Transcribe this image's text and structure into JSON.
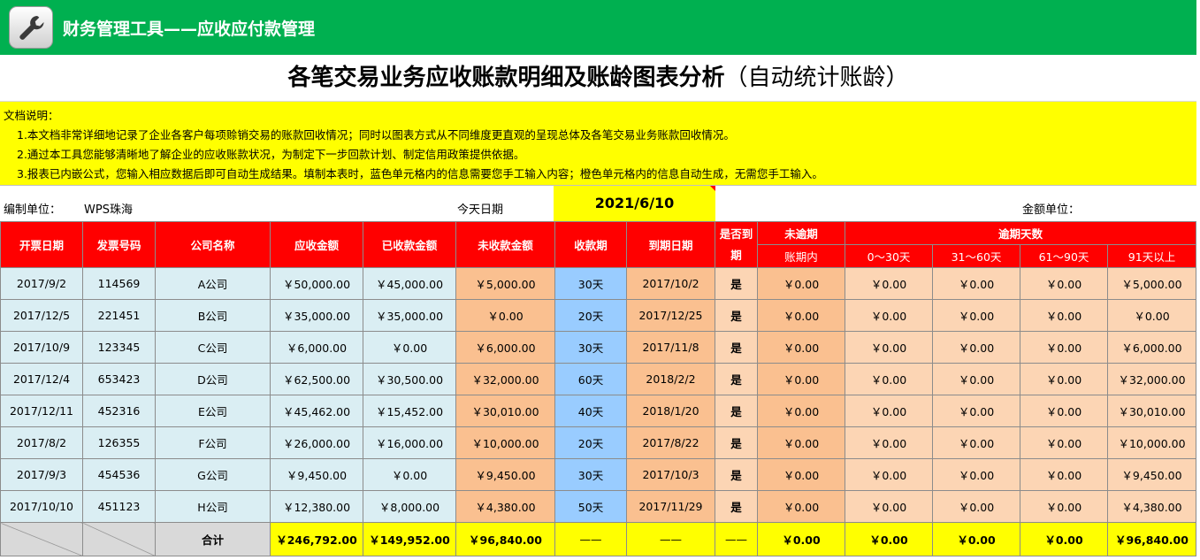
{
  "banner": {
    "title": "财务管理工具——应收应付款管理",
    "icon": "wrench-icon",
    "color": "#00b050"
  },
  "report": {
    "title": "各笔交易业务应收账款明细及账龄图表分析",
    "title_suffix": "（自动统计账龄）"
  },
  "notes": {
    "heading": "文档说明：",
    "lines": [
      "1.本文档非常详细地记录了企业各客户每项赊销交易的账款回收情况；同时以图表方式从不同维度更直观的呈现总体及各笔交易业务账款回收情况。",
      "2.通过本工具您能够清晰地了解企业的应收账款状况，为制定下一步回款计划、制定信用政策提供依据。",
      "3.报表已内嵌公式，您输入相应数据后即可自动生成结果。填制本表时，蓝色单元格内的信息需要您手工输入内容；橙色单元格内的信息自动生成，无需您手工输入。"
    ]
  },
  "info": {
    "unit_label": "编制单位：",
    "unit_value": "WPS珠海",
    "today_label": "今天日期",
    "today_value": "2021/6/10",
    "amount_unit_label": "金额单位："
  },
  "headers": {
    "invoice_date": "开票日期",
    "invoice_no": "发票号码",
    "company": "公司名称",
    "receivable": "应收金额",
    "received": "已收款金额",
    "outstanding": "未收款金额",
    "term": "收款期",
    "due_date": "到期日期",
    "overdue_q": "是否到期",
    "not_overdue": "未逾期",
    "within_term": "账期内",
    "overdue_days": "逾期天数",
    "b1": "0～30天",
    "b2": "31～60天",
    "b3": "61～90天",
    "b4": "91天以上"
  },
  "rows": [
    {
      "date": "2017/9/2",
      "no": "114569",
      "company": "A公司",
      "receivable": "￥50,000.00",
      "received": "￥45,000.00",
      "outstanding": "￥5,000.00",
      "term": "30天",
      "due": "2017/10/2",
      "overdue": "是",
      "within": "￥0.00",
      "b1": "￥0.00",
      "b2": "￥0.00",
      "b3": "￥0.00",
      "b4": "￥5,000.00"
    },
    {
      "date": "2017/12/5",
      "no": "221451",
      "company": "B公司",
      "receivable": "￥35,000.00",
      "received": "￥35,000.00",
      "outstanding": "￥0.00",
      "term": "20天",
      "due": "2017/12/25",
      "overdue": "是",
      "within": "￥0.00",
      "b1": "￥0.00",
      "b2": "￥0.00",
      "b3": "￥0.00",
      "b4": "￥0.00"
    },
    {
      "date": "2017/10/9",
      "no": "123345",
      "company": "C公司",
      "receivable": "￥6,000.00",
      "received": "￥0.00",
      "outstanding": "￥6,000.00",
      "term": "30天",
      "due": "2017/11/8",
      "overdue": "是",
      "within": "￥0.00",
      "b1": "￥0.00",
      "b2": "￥0.00",
      "b3": "￥0.00",
      "b4": "￥6,000.00"
    },
    {
      "date": "2017/12/4",
      "no": "653423",
      "company": "D公司",
      "receivable": "￥62,500.00",
      "received": "￥30,500.00",
      "outstanding": "￥32,000.00",
      "term": "60天",
      "due": "2018/2/2",
      "overdue": "是",
      "within": "￥0.00",
      "b1": "￥0.00",
      "b2": "￥0.00",
      "b3": "￥0.00",
      "b4": "￥32,000.00"
    },
    {
      "date": "2017/12/11",
      "no": "452316",
      "company": "E公司",
      "receivable": "￥45,462.00",
      "received": "￥15,452.00",
      "outstanding": "￥30,010.00",
      "term": "40天",
      "due": "2018/1/20",
      "overdue": "是",
      "within": "￥0.00",
      "b1": "￥0.00",
      "b2": "￥0.00",
      "b3": "￥0.00",
      "b4": "￥30,010.00"
    },
    {
      "date": "2017/8/2",
      "no": "126355",
      "company": "F公司",
      "receivable": "￥26,000.00",
      "received": "￥16,000.00",
      "outstanding": "￥10,000.00",
      "term": "20天",
      "due": "2017/8/22",
      "overdue": "是",
      "within": "￥0.00",
      "b1": "￥0.00",
      "b2": "￥0.00",
      "b3": "￥0.00",
      "b4": "￥10,000.00"
    },
    {
      "date": "2017/9/3",
      "no": "454536",
      "company": "G公司",
      "receivable": "￥9,450.00",
      "received": "￥0.00",
      "outstanding": "￥9,450.00",
      "term": "30天",
      "due": "2017/10/3",
      "overdue": "是",
      "within": "￥0.00",
      "b1": "￥0.00",
      "b2": "￥0.00",
      "b3": "￥0.00",
      "b4": "￥9,450.00"
    },
    {
      "date": "2017/10/10",
      "no": "451123",
      "company": "H公司",
      "receivable": "￥12,380.00",
      "received": "￥8,000.00",
      "outstanding": "￥4,380.00",
      "term": "50天",
      "due": "2017/11/29",
      "overdue": "是",
      "within": "￥0.00",
      "b1": "￥0.00",
      "b2": "￥0.00",
      "b3": "￥0.00",
      "b4": "￥4,380.00"
    }
  ],
  "totals": {
    "label": "合计",
    "receivable": "￥246,792.00",
    "received": "￥149,952.00",
    "outstanding": "￥96,840.00",
    "term": "——",
    "due": "——",
    "overdue": "——",
    "within": "￥0.00",
    "b1": "￥0.00",
    "b2": "￥0.00",
    "b3": "￥0.00",
    "b4": "￥96,840.00"
  },
  "colors": {
    "header_red": "#ff0000",
    "input_blue": "#daeef3",
    "auto_orange": "#fac090",
    "term_blue": "#99ccff",
    "peach": "#fcd5b4",
    "total_yellow": "#ffff00"
  }
}
